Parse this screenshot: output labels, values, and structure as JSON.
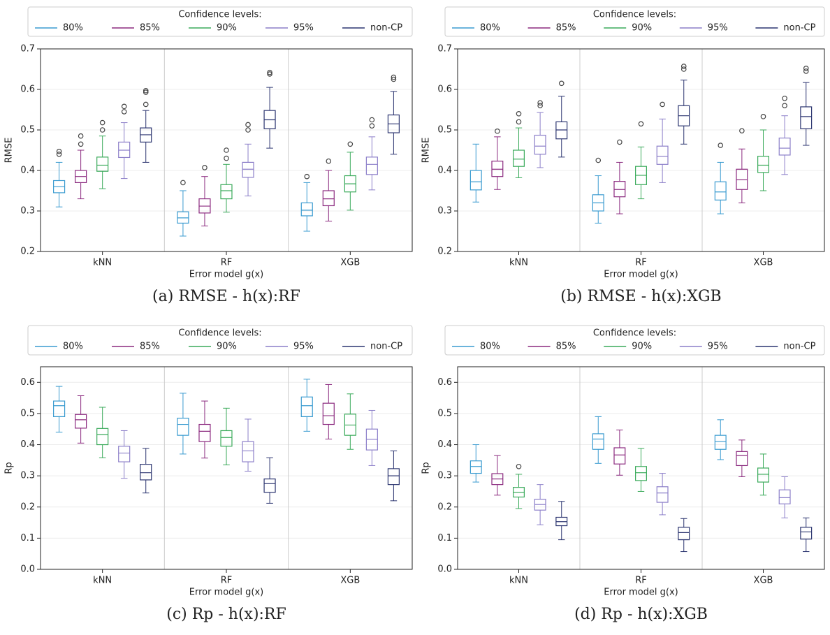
{
  "chart_data": [
    {
      "type": "box",
      "title": "(a) RMSE - h(x):RF",
      "legend_title": "Confidence levels:",
      "xlabel": "Error model g(x)",
      "ylabel": "RMSE",
      "categories": [
        "kNN",
        "RF",
        "XGB"
      ],
      "ylim": [
        0.2,
        0.7
      ],
      "yticks": [
        0.2,
        0.3,
        0.4,
        0.5,
        0.6,
        0.7
      ],
      "grid": true,
      "series": [
        {
          "name": "80%",
          "color": "#3a9bd0",
          "values": [
            {
              "min": 0.31,
              "q1": 0.345,
              "median": 0.36,
              "q3": 0.375,
              "max": 0.42,
              "outliers": [
                0.44,
                0.447
              ]
            },
            {
              "min": 0.238,
              "q1": 0.27,
              "median": 0.283,
              "q3": 0.298,
              "max": 0.35,
              "outliers": [
                0.37
              ]
            },
            {
              "min": 0.25,
              "q1": 0.288,
              "median": 0.302,
              "q3": 0.32,
              "max": 0.37,
              "outliers": [
                0.385
              ]
            }
          ]
        },
        {
          "name": "85%",
          "color": "#8b2a7f",
          "values": [
            {
              "min": 0.33,
              "q1": 0.37,
              "median": 0.385,
              "q3": 0.4,
              "max": 0.45,
              "outliers": [
                0.465,
                0.485
              ]
            },
            {
              "min": 0.263,
              "q1": 0.295,
              "median": 0.312,
              "q3": 0.33,
              "max": 0.385,
              "outliers": [
                0.407
              ]
            },
            {
              "min": 0.275,
              "q1": 0.313,
              "median": 0.33,
              "q3": 0.35,
              "max": 0.4,
              "outliers": [
                0.423
              ]
            }
          ]
        },
        {
          "name": "90%",
          "color": "#3aaa5a",
          "values": [
            {
              "min": 0.355,
              "q1": 0.398,
              "median": 0.413,
              "q3": 0.433,
              "max": 0.485,
              "outliers": [
                0.5,
                0.518
              ]
            },
            {
              "min": 0.297,
              "q1": 0.33,
              "median": 0.35,
              "q3": 0.365,
              "max": 0.415,
              "outliers": [
                0.43,
                0.45
              ]
            },
            {
              "min": 0.302,
              "q1": 0.347,
              "median": 0.367,
              "q3": 0.387,
              "max": 0.445,
              "outliers": [
                0.465
              ]
            }
          ]
        },
        {
          "name": "95%",
          "color": "#8c7fc9",
          "values": [
            {
              "min": 0.38,
              "q1": 0.432,
              "median": 0.45,
              "q3": 0.47,
              "max": 0.518,
              "outliers": [
                0.545,
                0.558
              ]
            },
            {
              "min": 0.337,
              "q1": 0.383,
              "median": 0.403,
              "q3": 0.42,
              "max": 0.465,
              "outliers": [
                0.5,
                0.513
              ]
            },
            {
              "min": 0.352,
              "q1": 0.39,
              "median": 0.415,
              "q3": 0.433,
              "max": 0.483,
              "outliers": [
                0.51,
                0.525
              ]
            }
          ]
        },
        {
          "name": "non-CP",
          "color": "#2c3570",
          "values": [
            {
              "min": 0.42,
              "q1": 0.47,
              "median": 0.488,
              "q3": 0.505,
              "max": 0.548,
              "outliers": [
                0.563,
                0.593,
                0.597
              ]
            },
            {
              "min": 0.455,
              "q1": 0.503,
              "median": 0.525,
              "q3": 0.548,
              "max": 0.605,
              "outliers": [
                0.638,
                0.642
              ]
            },
            {
              "min": 0.44,
              "q1": 0.493,
              "median": 0.515,
              "q3": 0.537,
              "max": 0.595,
              "outliers": [
                0.625,
                0.63
              ]
            }
          ]
        }
      ]
    },
    {
      "type": "box",
      "title": "(b) RMSE - h(x):XGB",
      "legend_title": "Confidence levels:",
      "xlabel": "Error model g(x)",
      "ylabel": "RMSE",
      "categories": [
        "kNN",
        "RF",
        "XGB"
      ],
      "ylim": [
        0.2,
        0.7
      ],
      "yticks": [
        0.2,
        0.3,
        0.4,
        0.5,
        0.6,
        0.7
      ],
      "grid": true,
      "series": [
        {
          "name": "80%",
          "color": "#3a9bd0",
          "values": [
            {
              "min": 0.322,
              "q1": 0.352,
              "median": 0.372,
              "q3": 0.4,
              "max": 0.465
            },
            {
              "min": 0.27,
              "q1": 0.3,
              "median": 0.32,
              "q3": 0.34,
              "max": 0.387,
              "outliers": [
                0.425
              ]
            },
            {
              "min": 0.293,
              "q1": 0.327,
              "median": 0.347,
              "q3": 0.372,
              "max": 0.42,
              "outliers": [
                0.462
              ]
            }
          ]
        },
        {
          "name": "85%",
          "color": "#8b2a7f",
          "values": [
            {
              "min": 0.353,
              "q1": 0.385,
              "median": 0.403,
              "q3": 0.423,
              "max": 0.483,
              "outliers": [
                0.497
              ]
            },
            {
              "min": 0.293,
              "q1": 0.335,
              "median": 0.353,
              "q3": 0.373,
              "max": 0.42,
              "outliers": [
                0.47
              ]
            },
            {
              "min": 0.32,
              "q1": 0.353,
              "median": 0.377,
              "q3": 0.403,
              "max": 0.453,
              "outliers": [
                0.498
              ]
            }
          ]
        },
        {
          "name": "90%",
          "color": "#3aaa5a",
          "values": [
            {
              "min": 0.382,
              "q1": 0.41,
              "median": 0.428,
              "q3": 0.45,
              "max": 0.505,
              "outliers": [
                0.52,
                0.54
              ]
            },
            {
              "min": 0.33,
              "q1": 0.365,
              "median": 0.388,
              "q3": 0.41,
              "max": 0.458,
              "outliers": [
                0.515
              ]
            },
            {
              "min": 0.35,
              "q1": 0.395,
              "median": 0.413,
              "q3": 0.435,
              "max": 0.5,
              "outliers": [
                0.533
              ]
            }
          ]
        },
        {
          "name": "95%",
          "color": "#8c7fc9",
          "values": [
            {
              "min": 0.407,
              "q1": 0.44,
              "median": 0.46,
              "q3": 0.487,
              "max": 0.543,
              "outliers": [
                0.56,
                0.567
              ]
            },
            {
              "min": 0.37,
              "q1": 0.415,
              "median": 0.435,
              "q3": 0.46,
              "max": 0.527,
              "outliers": [
                0.563
              ]
            },
            {
              "min": 0.39,
              "q1": 0.438,
              "median": 0.455,
              "q3": 0.48,
              "max": 0.535,
              "outliers": [
                0.56,
                0.578
              ]
            }
          ]
        },
        {
          "name": "non-CP",
          "color": "#2c3570",
          "values": [
            {
              "min": 0.433,
              "q1": 0.478,
              "median": 0.5,
              "q3": 0.52,
              "max": 0.583,
              "outliers": [
                0.615
              ]
            },
            {
              "min": 0.465,
              "q1": 0.51,
              "median": 0.535,
              "q3": 0.56,
              "max": 0.623,
              "outliers": [
                0.65,
                0.657
              ]
            },
            {
              "min": 0.462,
              "q1": 0.503,
              "median": 0.533,
              "q3": 0.557,
              "max": 0.617,
              "outliers": [
                0.645,
                0.652
              ]
            }
          ]
        }
      ]
    },
    {
      "type": "box",
      "title": "(c) Rp - h(x):RF",
      "legend_title": "Confidence levels:",
      "xlabel": "Error model g(x)",
      "ylabel": "Rp",
      "categories": [
        "kNN",
        "RF",
        "XGB"
      ],
      "ylim": [
        0,
        0.65
      ],
      "yticks": [
        {
          "value": 0,
          "label": "0.0"
        },
        0.1,
        0.2,
        0.3,
        0.4,
        0.5,
        0.6
      ],
      "grid": true,
      "series": [
        {
          "name": "80%",
          "color": "#3a9bd0",
          "values": [
            {
              "min": 0.44,
              "q1": 0.49,
              "median": 0.525,
              "q3": 0.54,
              "max": 0.587
            },
            {
              "min": 0.37,
              "q1": 0.43,
              "median": 0.465,
              "q3": 0.485,
              "max": 0.565
            },
            {
              "min": 0.443,
              "q1": 0.49,
              "median": 0.525,
              "q3": 0.553,
              "max": 0.61
            }
          ]
        },
        {
          "name": "85%",
          "color": "#8b2a7f",
          "values": [
            {
              "min": 0.405,
              "q1": 0.453,
              "median": 0.48,
              "q3": 0.497,
              "max": 0.557
            },
            {
              "min": 0.357,
              "q1": 0.41,
              "median": 0.443,
              "q3": 0.465,
              "max": 0.54
            },
            {
              "min": 0.418,
              "q1": 0.465,
              "median": 0.493,
              "q3": 0.533,
              "max": 0.593
            }
          ]
        },
        {
          "name": "90%",
          "color": "#3aaa5a",
          "values": [
            {
              "min": 0.358,
              "q1": 0.4,
              "median": 0.432,
              "q3": 0.452,
              "max": 0.52
            },
            {
              "min": 0.335,
              "q1": 0.395,
              "median": 0.423,
              "q3": 0.445,
              "max": 0.517
            },
            {
              "min": 0.385,
              "q1": 0.43,
              "median": 0.463,
              "q3": 0.498,
              "max": 0.563
            }
          ]
        },
        {
          "name": "95%",
          "color": "#8c7fc9",
          "values": [
            {
              "min": 0.292,
              "q1": 0.345,
              "median": 0.373,
              "q3": 0.395,
              "max": 0.445
            },
            {
              "min": 0.315,
              "q1": 0.345,
              "median": 0.38,
              "q3": 0.41,
              "max": 0.482
            },
            {
              "min": 0.333,
              "q1": 0.383,
              "median": 0.417,
              "q3": 0.45,
              "max": 0.51
            }
          ]
        },
        {
          "name": "non-CP",
          "color": "#2c3570",
          "values": [
            {
              "min": 0.245,
              "q1": 0.287,
              "median": 0.31,
              "q3": 0.337,
              "max": 0.388
            },
            {
              "min": 0.212,
              "q1": 0.247,
              "median": 0.275,
              "q3": 0.29,
              "max": 0.358
            },
            {
              "min": 0.22,
              "q1": 0.272,
              "median": 0.3,
              "q3": 0.323,
              "max": 0.38
            }
          ]
        }
      ]
    },
    {
      "type": "box",
      "title": "(d) Rp - h(x):XGB",
      "legend_title": "Confidence levels:",
      "xlabel": "Error model g(x)",
      "ylabel": "Rp",
      "categories": [
        "kNN",
        "RF",
        "XGB"
      ],
      "ylim": [
        0,
        0.65
      ],
      "yticks": [
        {
          "value": 0,
          "label": "0.0"
        },
        0.1,
        0.2,
        0.3,
        0.4,
        0.5,
        0.6
      ],
      "grid": true,
      "series": [
        {
          "name": "80%",
          "color": "#3a9bd0",
          "values": [
            {
              "min": 0.28,
              "q1": 0.308,
              "median": 0.33,
              "q3": 0.348,
              "max": 0.4
            },
            {
              "min": 0.34,
              "q1": 0.385,
              "median": 0.418,
              "q3": 0.435,
              "max": 0.49
            },
            {
              "min": 0.352,
              "q1": 0.385,
              "median": 0.41,
              "q3": 0.43,
              "max": 0.48
            }
          ]
        },
        {
          "name": "85%",
          "color": "#8b2a7f",
          "values": [
            {
              "min": 0.238,
              "q1": 0.272,
              "median": 0.29,
              "q3": 0.307,
              "max": 0.365
            },
            {
              "min": 0.302,
              "q1": 0.338,
              "median": 0.367,
              "q3": 0.39,
              "max": 0.447
            },
            {
              "min": 0.297,
              "q1": 0.333,
              "median": 0.365,
              "q3": 0.378,
              "max": 0.415
            }
          ]
        },
        {
          "name": "90%",
          "color": "#3aaa5a",
          "values": [
            {
              "min": 0.195,
              "q1": 0.232,
              "median": 0.247,
              "q3": 0.263,
              "max": 0.305,
              "outliers": [
                0.33
              ]
            },
            {
              "min": 0.25,
              "q1": 0.285,
              "median": 0.31,
              "q3": 0.33,
              "max": 0.388
            },
            {
              "min": 0.238,
              "q1": 0.28,
              "median": 0.305,
              "q3": 0.325,
              "max": 0.37
            }
          ]
        },
        {
          "name": "95%",
          "color": "#8c7fc9",
          "values": [
            {
              "min": 0.143,
              "q1": 0.19,
              "median": 0.208,
              "q3": 0.225,
              "max": 0.272
            },
            {
              "min": 0.175,
              "q1": 0.215,
              "median": 0.245,
              "q3": 0.265,
              "max": 0.308
            },
            {
              "min": 0.165,
              "q1": 0.21,
              "median": 0.23,
              "q3": 0.255,
              "max": 0.297
            }
          ]
        },
        {
          "name": "non-CP",
          "color": "#2c3570",
          "values": [
            {
              "min": 0.095,
              "q1": 0.14,
              "median": 0.153,
              "q3": 0.167,
              "max": 0.218
            },
            {
              "min": 0.057,
              "q1": 0.095,
              "median": 0.118,
              "q3": 0.135,
              "max": 0.163
            },
            {
              "min": 0.057,
              "q1": 0.097,
              "median": 0.12,
              "q3": 0.135,
              "max": 0.165
            }
          ]
        }
      ]
    }
  ]
}
